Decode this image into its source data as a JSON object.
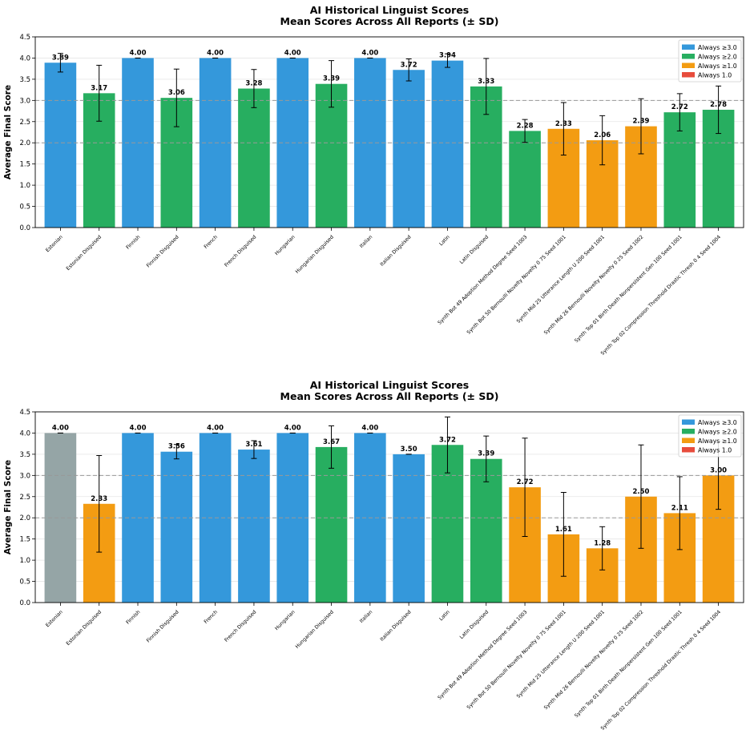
{
  "colors": {
    "ge3": "#3498db",
    "ge2": "#27ae60",
    "ge1": "#f39c12",
    "eq1": "#e74c3c",
    "other": "#95a5a6"
  },
  "legend": [
    {
      "label": "Always ≥3.0",
      "color_key": "ge3"
    },
    {
      "label": "Always ≥2.0",
      "color_key": "ge2"
    },
    {
      "label": "Always ≥1.0",
      "color_key": "ge1"
    },
    {
      "label": "Always 1.0",
      "color_key": "eq1"
    }
  ],
  "chart_data": [
    {
      "type": "bar",
      "title": "AI Historical Linguist Scores",
      "subtitle": "Mean Scores Across All Reports (± SD)",
      "xlabel": "",
      "ylabel": "Average Final Score",
      "ylim": [
        0,
        4.5
      ],
      "yticks": [
        "0.0",
        "0.5",
        "1.0",
        "1.5",
        "2.0",
        "2.5",
        "3.0",
        "3.5",
        "4.0",
        "4.5"
      ],
      "reference_lines": [
        2.0,
        3.0
      ],
      "grid": "y",
      "legend_position": "top-right",
      "categories": [
        "Estonian",
        "Estonian Disguised",
        "Finnish",
        "Finnish Disguised",
        "French",
        "French Disguised",
        "Hungarian",
        "Hungarian Disguised",
        "Italian",
        "Italian Disguised",
        "Latin",
        "Latin Disguised",
        "Synth Bot 49  Adoption Method  Degree  Seed 1003",
        "Synth Bot 50  Bernoulli Novelty  Novelty 0 75  Seed 1001",
        "Synth Mid 25  Utterance Length  U 200  Seed 1001",
        "Synth Mid 26  Bernoulli Novelty  Novelty 0 25  Seed 1002",
        "Synth Top 01  Birth Death  Nonpersistent Gen 100  Seed 1001",
        "Synth Top 02  Compression Threshold  Drastic Thresh 0 4  Seed 1004"
      ],
      "values": [
        3.89,
        3.17,
        4.0,
        3.06,
        4.0,
        3.28,
        4.0,
        3.39,
        4.0,
        3.72,
        3.94,
        3.33,
        2.28,
        2.33,
        2.06,
        2.39,
        2.72,
        2.78
      ],
      "labels": [
        "3.89",
        "3.17",
        "4.00",
        "3.06",
        "4.00",
        "3.28",
        "4.00",
        "3.39",
        "4.00",
        "3.72",
        "3.94",
        "3.33",
        "2.28",
        "2.33",
        "2.06",
        "2.39",
        "2.72",
        "2.78"
      ],
      "errors": [
        0.22,
        0.66,
        0.0,
        0.68,
        0.0,
        0.45,
        0.0,
        0.55,
        0.0,
        0.26,
        0.16,
        0.66,
        0.27,
        0.62,
        0.58,
        0.65,
        0.44,
        0.56
      ],
      "color_keys": [
        "ge3",
        "ge2",
        "ge3",
        "ge2",
        "ge3",
        "ge2",
        "ge3",
        "ge2",
        "ge3",
        "ge3",
        "ge3",
        "ge2",
        "ge2",
        "ge1",
        "ge1",
        "ge1",
        "ge2",
        "ge2"
      ]
    },
    {
      "type": "bar",
      "title": "AI Historical Linguist Scores",
      "subtitle": "Mean Scores Across All Reports (± SD)",
      "xlabel": "",
      "ylabel": "Average Final Score",
      "ylim": [
        0,
        4.5
      ],
      "yticks": [
        "0.0",
        "0.5",
        "1.0",
        "1.5",
        "2.0",
        "2.5",
        "3.0",
        "3.5",
        "4.0",
        "4.5"
      ],
      "reference_lines": [
        2.0,
        3.0
      ],
      "grid": "y",
      "legend_position": "top-right",
      "categories": [
        "Estonian",
        "Estonian Disguised",
        "Finnish",
        "Finnish Disguised",
        "French",
        "French Disguised",
        "Hungarian",
        "Hungarian Disguised",
        "Italian",
        "Italian Disguised",
        "Latin",
        "Latin Disguised",
        "Synth Bot 49  Adoption Method  Degree  Seed 1003",
        "Synth Bot 50  Bernoulli Novelty  Novelty 0 75  Seed 1001",
        "Synth Mid 25  Utterance Length  U 200  Seed 1001",
        "Synth Mid 26  Bernoulli Novelty  Novelty 0 25  Seed 1002",
        "Synth Top 01  Birth Death  Nonpersistent Gen 100  Seed 1001",
        "Synth Top 02  Compression Threshold  Drastic Thresh 0 4  Seed 1004"
      ],
      "values": [
        4.0,
        2.33,
        4.0,
        3.56,
        4.0,
        3.61,
        4.0,
        3.67,
        4.0,
        3.5,
        3.72,
        3.39,
        2.72,
        1.61,
        1.28,
        2.5,
        2.11,
        3.0
      ],
      "labels": [
        "4.00",
        "2.33",
        "4.00",
        "3.56",
        "4.00",
        "3.61",
        "4.00",
        "3.67",
        "4.00",
        "3.50",
        "3.72",
        "3.39",
        "2.72",
        "1.61",
        "1.28",
        "2.50",
        "2.11",
        "3.00"
      ],
      "errors": [
        0.0,
        1.14,
        0.0,
        0.17,
        0.0,
        0.21,
        0.0,
        0.5,
        0.0,
        0.0,
        0.66,
        0.54,
        1.16,
        0.99,
        0.51,
        1.22,
        0.86,
        0.8
      ],
      "color_keys": [
        "other",
        "ge1",
        "ge3",
        "ge3",
        "ge3",
        "ge3",
        "ge3",
        "ge2",
        "ge3",
        "ge3",
        "ge2",
        "ge2",
        "ge1",
        "ge1",
        "ge1",
        "ge1",
        "ge1",
        "ge1"
      ]
    }
  ]
}
